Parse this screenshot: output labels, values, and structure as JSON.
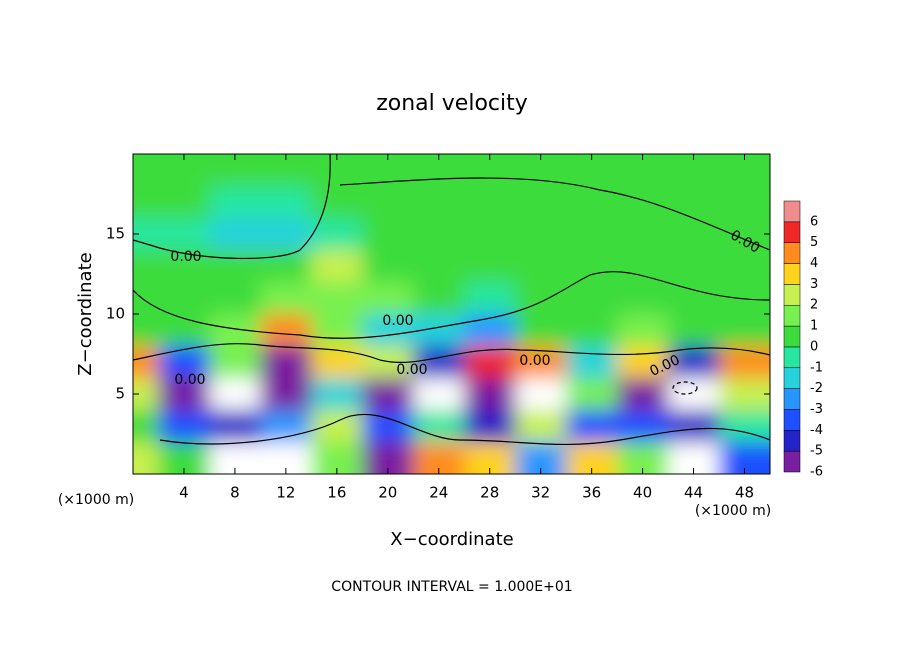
{
  "chart_data": {
    "type": "contour",
    "title": "zonal velocity",
    "xlabel": "X−coordinate",
    "ylabel": "Z−coordinate",
    "x_unit": "(×1000 m)",
    "x_unit_right": "(×1000 m)",
    "footer": "CONTOUR INTERVAL = 1.000E+01",
    "xlim": [
      0,
      50
    ],
    "ylim": [
      0,
      20
    ],
    "xticks": [
      4,
      8,
      12,
      16,
      20,
      24,
      28,
      32,
      36,
      40,
      44,
      48
    ],
    "yticks": [
      5,
      10,
      15
    ],
    "grid_x": [
      0,
      4,
      8,
      12,
      16,
      20,
      24,
      28,
      32,
      36,
      40,
      44,
      48
    ],
    "grid_z": [
      19,
      17,
      15,
      13,
      11,
      9,
      7,
      5,
      3,
      1
    ],
    "z": [
      [
        0.3,
        0.3,
        0.3,
        0.3,
        0.3,
        0.3,
        0.3,
        0.3,
        0.3,
        0.3,
        0.3,
        0.3,
        0.3
      ],
      [
        0.3,
        0.3,
        -0.3,
        -0.5,
        0.3,
        0.3,
        0.3,
        0.3,
        0.3,
        0.3,
        0.3,
        0.3,
        0.3
      ],
      [
        -0.3,
        -0.5,
        -1.5,
        -1.5,
        -0.5,
        0.3,
        0.5,
        0.5,
        0.5,
        0.5,
        0.3,
        0.3,
        0.3
      ],
      [
        0.5,
        0.5,
        0.5,
        0.8,
        2.5,
        1,
        0.8,
        0.8,
        0.5,
        0.5,
        0.5,
        0.5,
        0.5
      ],
      [
        0.5,
        0.5,
        0.8,
        1.5,
        1.5,
        1.5,
        0.5,
        -0.5,
        0.5,
        0.5,
        0.8,
        0.5,
        0.5
      ],
      [
        0.5,
        1,
        1.5,
        5,
        2,
        -1,
        -1.5,
        -2,
        0.5,
        1,
        2,
        1,
        0.5
      ],
      [
        5,
        -3,
        2,
        -5,
        4,
        3,
        -4,
        6,
        5,
        -1,
        4,
        -4,
        5
      ],
      [
        3,
        -5,
        -8,
        -6,
        -1,
        -5,
        -8,
        -5,
        8,
        2,
        -5,
        -8,
        3
      ],
      [
        1,
        -3,
        -4,
        -2,
        3,
        -3,
        0,
        -4,
        3,
        -3,
        -3,
        -4,
        0
      ],
      [
        3,
        1,
        8,
        8,
        2,
        -6,
        5,
        4,
        -2,
        4,
        2,
        8,
        -3
      ]
    ],
    "levels": [
      -6,
      -5,
      -4,
      -3,
      -2,
      -1,
      0,
      1,
      2,
      3,
      4,
      5,
      6
    ],
    "colors": [
      "#7a1fa0",
      "#2323c8",
      "#1e50ff",
      "#2896ff",
      "#28d2dc",
      "#28e6a0",
      "#3cdc3c",
      "#78f050",
      "#c8f050",
      "#ffd21e",
      "#ff8c1e",
      "#f02828",
      "#f08c8c"
    ],
    "contour_labels": [
      "0.00",
      "0.00",
      "0.00",
      "0.00",
      "0.00",
      "0.00",
      "0.00"
    ]
  }
}
